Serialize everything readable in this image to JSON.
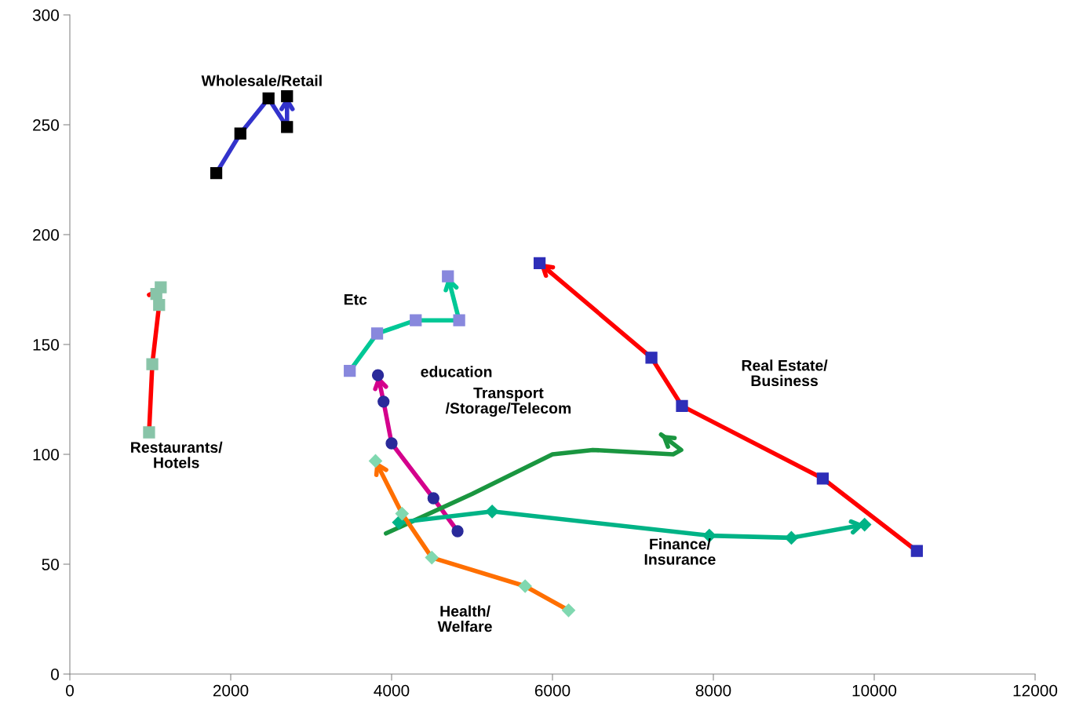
{
  "chart_data": {
    "type": "line",
    "xlim": [
      0,
      12000
    ],
    "ylim": [
      0,
      300
    ],
    "xticks": [
      0,
      2000,
      4000,
      6000,
      8000,
      10000,
      12000
    ],
    "yticks": [
      0,
      50,
      100,
      150,
      200,
      250,
      300
    ],
    "grid": false,
    "legend": false,
    "line_style": "solid",
    "series": [
      {
        "name": "Wholesale/Retail",
        "color": "#3333cc",
        "marker": "square",
        "colors": [
          "#000000",
          "#000000",
          "#000000",
          "#000000",
          "#000000"
        ],
        "x": [
          1820,
          2120,
          2470,
          2700,
          2700
        ],
        "values": [
          228,
          246,
          262,
          249,
          263
        ]
      },
      {
        "name": "Restaurants/\nHotels",
        "color": "#ff0000",
        "marker": "square",
        "colors": [
          "#88c4a8",
          "#88c4a8",
          "#88c4a8",
          "#88c4a8",
          "#88c4a8"
        ],
        "x": [
          985,
          1025,
          1110,
          1075,
          1130
        ],
        "values": [
          110,
          141,
          168,
          173,
          176
        ]
      },
      {
        "name": "Etc",
        "color": "#00c896",
        "marker": "square",
        "colors": [
          "#8888dd",
          "#8888dd",
          "#8888dd",
          "#8888dd",
          "#8888dd"
        ],
        "x": [
          3480,
          3820,
          4300,
          4840,
          4700
        ],
        "values": [
          138,
          155,
          161,
          161,
          181
        ]
      },
      {
        "name": "education",
        "color": "#d4008c",
        "marker": "circle",
        "colors": [
          "#2a2a9a",
          "#2a2a9a",
          "#2a2a9a",
          "#2a2a9a",
          "#2a2a9a"
        ],
        "x": [
          4820,
          4520,
          4000,
          3900,
          3830
        ],
        "values": [
          65,
          80,
          105,
          124,
          136
        ]
      },
      {
        "name": "Transport\n/Storage/Telecom",
        "color": "#1a9640",
        "marker": "none",
        "x": [
          3930,
          5000,
          6000,
          6500,
          7500,
          7600,
          7350
        ],
        "values": [
          64,
          82,
          100,
          102,
          100,
          102,
          109
        ]
      },
      {
        "name": "Real Estate/\nBusiness",
        "color": "#ff0000",
        "marker": "square",
        "colors": [
          "#2e2eb8",
          "#2e2eb8",
          "#2e2eb8",
          "#2e2eb8",
          "#2e2eb8"
        ],
        "x": [
          10530,
          9360,
          7610,
          7230,
          5840
        ],
        "values": [
          56,
          89,
          122,
          144,
          187
        ]
      },
      {
        "name": "Finance/\nInsurance",
        "color": "#00b386",
        "marker": "diamond",
        "colors": [
          "#00b386",
          "#00b386",
          "#00b386",
          "#00b386",
          "#00b386"
        ],
        "x": [
          4090,
          5250,
          7950,
          8970,
          9880
        ],
        "values": [
          69,
          74,
          63,
          62,
          68
        ]
      },
      {
        "name": "Health/\nWelfare",
        "color": "#ff6f00",
        "marker": "diamond",
        "colors": [
          "#80d8b0",
          "#80d8b0",
          "#80d8b0",
          "#80d8b0",
          "#80d8b0"
        ],
        "x": [
          6200,
          5660,
          4500,
          4130,
          3800
        ],
        "values": [
          29,
          40,
          53,
          73,
          97
        ]
      }
    ]
  }
}
